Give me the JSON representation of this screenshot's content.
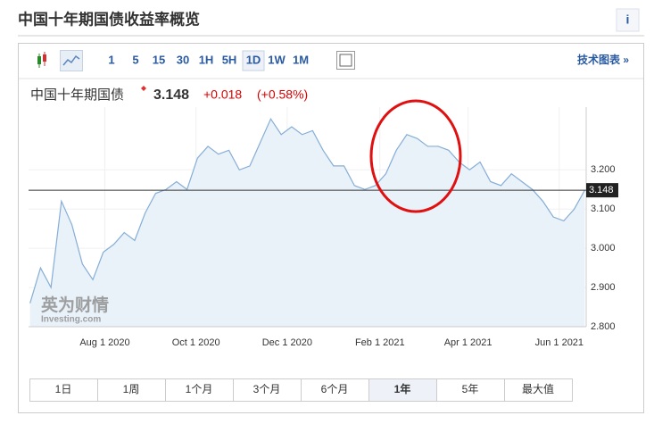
{
  "header": {
    "title": "中国十年期国债收益率概览",
    "info": "i"
  },
  "toolbar": {
    "intervals": [
      "1",
      "5",
      "15",
      "30",
      "1H",
      "5H",
      "1D",
      "1W",
      "1M"
    ],
    "selected": "1D",
    "tech_link": "技术图表 »"
  },
  "quote": {
    "name": "中国十年期国债",
    "change": "+0.018",
    "change_pct": "(+0.58%)"
  },
  "watermark": {
    "brand": "英为财情",
    "site": "Investing.com"
  },
  "chart_data": {
    "type": "area",
    "color": "#86aed6",
    "fill": "#e9f1f9",
    "grid": true,
    "x": [
      "2020-06-12",
      "2020-06-19",
      "2020-06-26",
      "2020-07-03",
      "2020-07-10",
      "2020-07-17",
      "2020-07-24",
      "2020-07-31",
      "2020-08-07",
      "2020-08-14",
      "2020-08-21",
      "2020-08-28",
      "2020-09-04",
      "2020-09-11",
      "2020-09-18",
      "2020-09-25",
      "2020-10-02",
      "2020-10-09",
      "2020-10-16",
      "2020-10-23",
      "2020-10-30",
      "2020-11-06",
      "2020-11-13",
      "2020-11-20",
      "2020-11-27",
      "2020-12-04",
      "2020-12-11",
      "2020-12-18",
      "2020-12-25",
      "2021-01-01",
      "2021-01-08",
      "2021-01-15",
      "2021-01-22",
      "2021-01-29",
      "2021-02-05",
      "2021-02-12",
      "2021-02-19",
      "2021-02-26",
      "2021-03-05",
      "2021-03-12",
      "2021-03-19",
      "2021-03-26",
      "2021-04-02",
      "2021-04-09",
      "2021-04-16",
      "2021-04-23",
      "2021-04-30",
      "2021-05-07",
      "2021-05-14",
      "2021-05-21",
      "2021-05-28",
      "2021-06-04",
      "2021-06-11",
      "2021-06-18"
    ],
    "series": [
      {
        "values": [
          2.86,
          2.95,
          2.9,
          3.12,
          3.06,
          2.96,
          2.92,
          2.99,
          3.01,
          3.04,
          3.02,
          3.09,
          3.14,
          3.15,
          3.17,
          3.15,
          3.23,
          3.26,
          3.24,
          3.25,
          3.2,
          3.21,
          3.27,
          3.33,
          3.29,
          3.31,
          3.29,
          3.3,
          3.25,
          3.21,
          3.21,
          3.16,
          3.15,
          3.16,
          3.19,
          3.25,
          3.29,
          3.28,
          3.26,
          3.26,
          3.25,
          3.22,
          3.2,
          3.22,
          3.17,
          3.16,
          3.19,
          3.17,
          3.15,
          3.12,
          3.08,
          3.07,
          3.1,
          3.148
        ]
      }
    ],
    "last_value": 3.148,
    "xlim": [
      "2020-06-11",
      "2021-06-19"
    ],
    "xticks": [
      {
        "value": "2020-08-01",
        "label": "Aug 1 2020"
      },
      {
        "value": "2020-10-01",
        "label": "Oct 1 2020"
      },
      {
        "value": "2020-12-01",
        "label": "Dec 1 2020"
      },
      {
        "value": "2021-02-01",
        "label": "Feb 1 2021"
      },
      {
        "value": "2021-04-01",
        "label": "Apr 1 2021"
      },
      {
        "value": "2021-06-01",
        "label": "Jun 1 2021"
      }
    ],
    "ylim": [
      2.8,
      3.36
    ],
    "yticks": [
      {
        "value": 2.8,
        "label": "2.800"
      },
      {
        "value": 2.9,
        "label": "2.900"
      },
      {
        "value": 3.0,
        "label": "3.000"
      },
      {
        "value": 3.1,
        "label": "3.100"
      },
      {
        "value": 3.2,
        "label": "3.200"
      }
    ]
  },
  "ranges": {
    "items": [
      "1日",
      "1周",
      "1个月",
      "3个月",
      "6个月",
      "1年",
      "5年",
      "最大值"
    ],
    "selected": "1年"
  }
}
